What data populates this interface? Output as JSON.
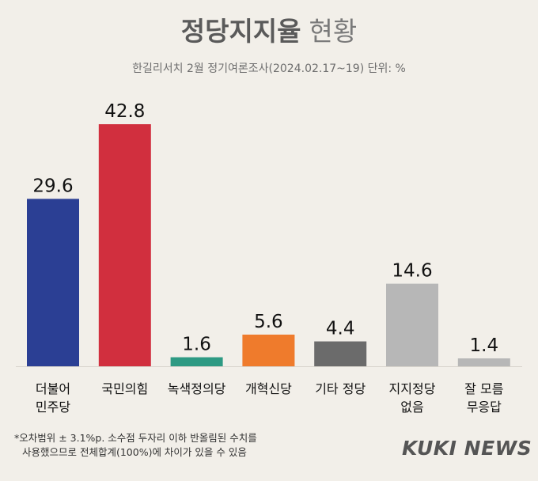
{
  "header": {
    "title": "정당지지율",
    "title_suffix": "현황",
    "subtitle": "한길리서치 2월 정기여론조사(2024.02.17~19) 단위: %"
  },
  "chart_data": {
    "type": "bar",
    "categories": [
      [
        "더불어",
        "민주당"
      ],
      [
        "국민의힘"
      ],
      [
        "녹색정의당"
      ],
      [
        "개혁신당"
      ],
      [
        "기타 정당"
      ],
      [
        "지지정당",
        "없음"
      ],
      [
        "잘 모름",
        "무응답"
      ]
    ],
    "values": [
      29.6,
      42.8,
      1.6,
      5.6,
      4.4,
      14.6,
      1.4
    ],
    "value_labels": [
      "29.6",
      "42.8",
      "1.6",
      "5.6",
      "4.4",
      "14.6",
      "1.4"
    ],
    "colors": [
      "#2b3f94",
      "#d12f3e",
      "#2e9a83",
      "#ef7b2c",
      "#6b6b6b",
      "#b7b7b7",
      "#b7b7b7"
    ],
    "ylim": [
      0,
      42.8
    ]
  },
  "footnote": {
    "line1": "*오차범위 ± 3.1%p. 소수점 두자리 이하 반올림된 수치를",
    "line2": "사용했으므로 전체합계(100%)에 차이가 있을 수 있음"
  },
  "logo": "KUKI NEWS"
}
